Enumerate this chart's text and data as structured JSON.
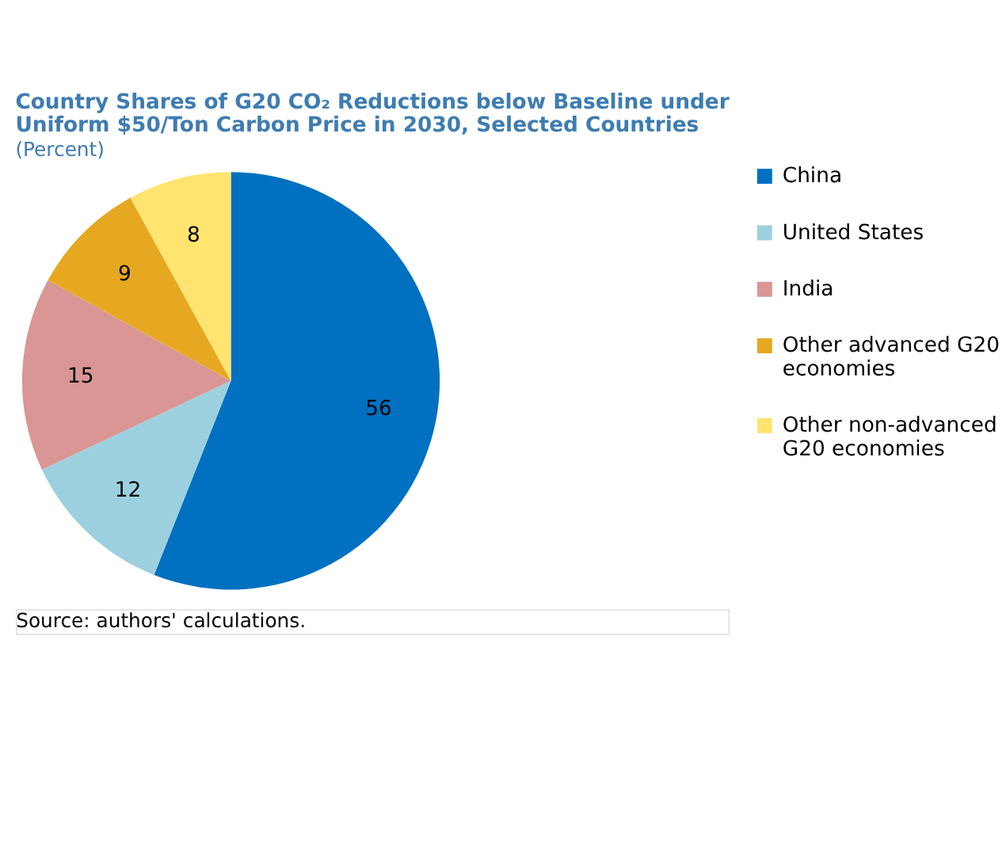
{
  "chart_data": {
    "type": "pie",
    "title": "Country Shares of G20 CO₂ Reductions below Baseline under Uniform $50/Ton Carbon Price in 2030, Selected Countries",
    "subtitle": "(Percent)",
    "categories": [
      "China",
      "United States",
      "India",
      "Other advanced G20 economies",
      "Other non-advanced G20 economies"
    ],
    "values": [
      56,
      12,
      15,
      9,
      8
    ],
    "colors": [
      "#0070c0",
      "#9dd0df",
      "#d99694",
      "#e6a820",
      "#ffe470"
    ],
    "data_labels": true,
    "legend": "right",
    "annotations": [
      "Source: authors' calculations."
    ]
  }
}
